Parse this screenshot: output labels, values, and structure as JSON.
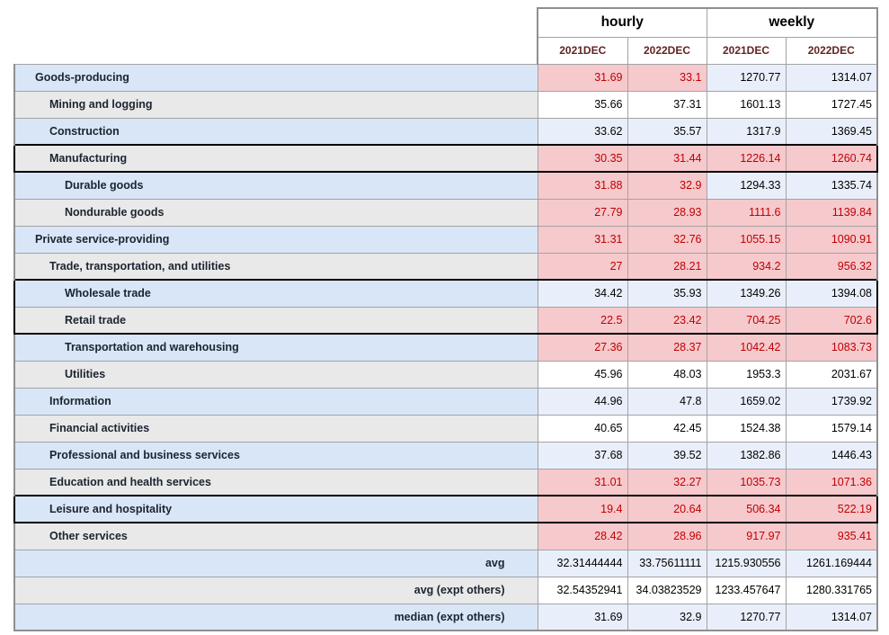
{
  "colors": {
    "alert_cell_bg": "#f6c9cd",
    "alert_text": "#c00000",
    "data_stripe_blue": "#e9effa",
    "label_stripe_blue": "#d8e6f7",
    "label_stripe_gray": "#e9e9e9",
    "grid_line": "#a3a3a3",
    "outer_border": "#8f8f8f",
    "subheader_text": "#622423",
    "emphasis_box": "#000000"
  },
  "chart_data": {
    "type": "table",
    "column_groups": [
      {
        "label": "hourly",
        "span": 2
      },
      {
        "label": "weekly",
        "span": 2
      }
    ],
    "columns": [
      "2021DEC",
      "2022DEC",
      "2021DEC",
      "2022DEC"
    ],
    "rows": [
      {
        "label": "Goods-producing",
        "indent": 1,
        "summary": false,
        "label_tint": "blue",
        "data_tint": "blue",
        "box": "none",
        "values": [
          "31.69",
          "33.1",
          "1270.77",
          "1314.07"
        ],
        "alert": [
          true,
          true,
          false,
          false
        ]
      },
      {
        "label": "Mining and logging",
        "indent": 2,
        "summary": false,
        "label_tint": "gray",
        "data_tint": "white",
        "box": "none",
        "values": [
          "35.66",
          "37.31",
          "1601.13",
          "1727.45"
        ],
        "alert": [
          false,
          false,
          false,
          false
        ]
      },
      {
        "label": "Construction",
        "indent": 2,
        "summary": false,
        "label_tint": "blue",
        "data_tint": "blue",
        "box": "none",
        "values": [
          "33.62",
          "35.57",
          "1317.9",
          "1369.45"
        ],
        "alert": [
          false,
          false,
          false,
          false
        ]
      },
      {
        "label": "Manufacturing",
        "indent": 2,
        "summary": false,
        "label_tint": "gray",
        "data_tint": "white",
        "box": "single",
        "values": [
          "30.35",
          "31.44",
          "1226.14",
          "1260.74"
        ],
        "alert": [
          true,
          true,
          true,
          true
        ]
      },
      {
        "label": "Durable goods",
        "indent": 3,
        "summary": false,
        "label_tint": "blue",
        "data_tint": "blue",
        "box": "none",
        "values": [
          "31.88",
          "32.9",
          "1294.33",
          "1335.74"
        ],
        "alert": [
          true,
          true,
          false,
          false
        ]
      },
      {
        "label": "Nondurable goods",
        "indent": 3,
        "summary": false,
        "label_tint": "gray",
        "data_tint": "white",
        "box": "none",
        "values": [
          "27.79",
          "28.93",
          "1111.6",
          "1139.84"
        ],
        "alert": [
          true,
          true,
          true,
          true
        ]
      },
      {
        "label": "Private service-providing",
        "indent": 1,
        "summary": false,
        "label_tint": "blue",
        "data_tint": "blue",
        "box": "none",
        "values": [
          "31.31",
          "32.76",
          "1055.15",
          "1090.91"
        ],
        "alert": [
          true,
          true,
          true,
          true
        ]
      },
      {
        "label": "Trade, transportation, and utilities",
        "indent": 2,
        "summary": false,
        "label_tint": "gray",
        "data_tint": "white",
        "box": "none",
        "values": [
          "27",
          "28.21",
          "934.2",
          "956.32"
        ],
        "alert": [
          true,
          true,
          true,
          true
        ]
      },
      {
        "label": "Wholesale trade",
        "indent": 3,
        "summary": false,
        "label_tint": "blue",
        "data_tint": "blue",
        "box": "top",
        "values": [
          "34.42",
          "35.93",
          "1349.26",
          "1394.08"
        ],
        "alert": [
          false,
          false,
          false,
          false
        ]
      },
      {
        "label": "Retail trade",
        "indent": 3,
        "summary": false,
        "label_tint": "gray",
        "data_tint": "white",
        "box": "bottom",
        "values": [
          "22.5",
          "23.42",
          "704.25",
          "702.6"
        ],
        "alert": [
          true,
          true,
          true,
          true
        ]
      },
      {
        "label": "Transportation and warehousing",
        "indent": 3,
        "summary": false,
        "label_tint": "blue",
        "data_tint": "blue",
        "box": "none",
        "values": [
          "27.36",
          "28.37",
          "1042.42",
          "1083.73"
        ],
        "alert": [
          true,
          true,
          true,
          true
        ]
      },
      {
        "label": "Utilities",
        "indent": 3,
        "summary": false,
        "label_tint": "gray",
        "data_tint": "white",
        "box": "none",
        "values": [
          "45.96",
          "48.03",
          "1953.3",
          "2031.67"
        ],
        "alert": [
          false,
          false,
          false,
          false
        ]
      },
      {
        "label": "Information",
        "indent": 2,
        "summary": false,
        "label_tint": "blue",
        "data_tint": "blue",
        "box": "none",
        "values": [
          "44.96",
          "47.8",
          "1659.02",
          "1739.92"
        ],
        "alert": [
          false,
          false,
          false,
          false
        ]
      },
      {
        "label": "Financial activities",
        "indent": 2,
        "summary": false,
        "label_tint": "gray",
        "data_tint": "white",
        "box": "none",
        "values": [
          "40.65",
          "42.45",
          "1524.38",
          "1579.14"
        ],
        "alert": [
          false,
          false,
          false,
          false
        ]
      },
      {
        "label": "Professional and business services",
        "indent": 2,
        "summary": false,
        "label_tint": "blue",
        "data_tint": "blue",
        "box": "none",
        "values": [
          "37.68",
          "39.52",
          "1382.86",
          "1446.43"
        ],
        "alert": [
          false,
          false,
          false,
          false
        ]
      },
      {
        "label": "Education and health services",
        "indent": 2,
        "summary": false,
        "label_tint": "gray",
        "data_tint": "white",
        "box": "none",
        "values": [
          "31.01",
          "32.27",
          "1035.73",
          "1071.36"
        ],
        "alert": [
          true,
          true,
          true,
          true
        ]
      },
      {
        "label": "Leisure and hospitality",
        "indent": 2,
        "summary": false,
        "label_tint": "blue",
        "data_tint": "blue",
        "box": "single",
        "values": [
          "19.4",
          "20.64",
          "506.34",
          "522.19"
        ],
        "alert": [
          true,
          true,
          true,
          true
        ]
      },
      {
        "label": "Other services",
        "indent": 2,
        "summary": false,
        "label_tint": "gray",
        "data_tint": "white",
        "box": "none",
        "values": [
          "28.42",
          "28.96",
          "917.97",
          "935.41"
        ],
        "alert": [
          true,
          true,
          true,
          true
        ]
      },
      {
        "label": "avg",
        "indent": 0,
        "summary": true,
        "label_tint": "blue",
        "data_tint": "blue",
        "box": "none",
        "values": [
          "32.31444444",
          "33.75611111",
          "1215.930556",
          "1261.169444"
        ],
        "alert": [
          false,
          false,
          false,
          false
        ]
      },
      {
        "label": "avg (expt others)",
        "indent": 0,
        "summary": true,
        "label_tint": "gray",
        "data_tint": "white",
        "box": "none",
        "values": [
          "32.54352941",
          "34.03823529",
          "1233.457647",
          "1280.331765"
        ],
        "alert": [
          false,
          false,
          false,
          false
        ]
      },
      {
        "label": "median (expt others)",
        "indent": 0,
        "summary": true,
        "label_tint": "blue",
        "data_tint": "blue",
        "box": "none",
        "values": [
          "31.69",
          "32.9",
          "1270.77",
          "1314.07"
        ],
        "alert": [
          false,
          false,
          false,
          false
        ]
      }
    ]
  }
}
